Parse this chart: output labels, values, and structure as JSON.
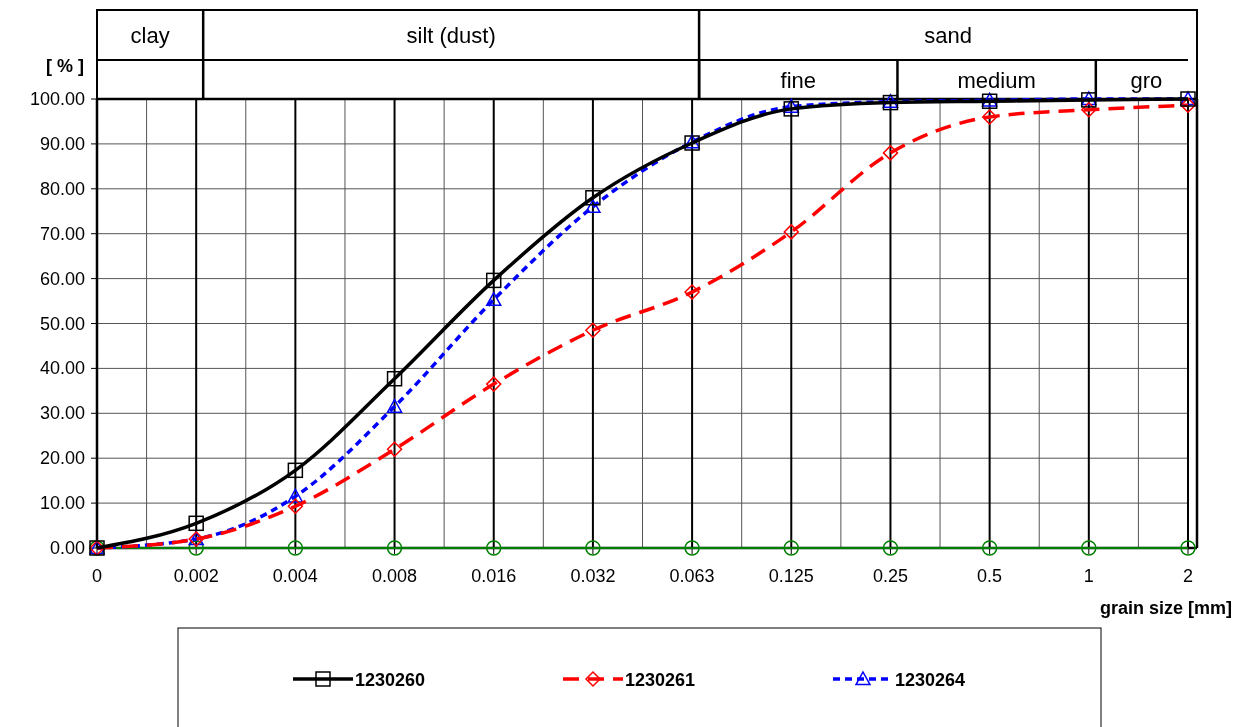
{
  "chart_data": {
    "type": "line",
    "xlabel": "grain size [mm]",
    "ylabel": "[ % ]",
    "categories": [
      "0",
      "0.002",
      "0.004",
      "0.008",
      "0.016",
      "0.032",
      "0.063",
      "0.125",
      "0.25",
      "0.5",
      "1",
      "2"
    ],
    "series": [
      {
        "name": "1230260",
        "color": "#000000",
        "marker": "square",
        "line_style": "solid",
        "values": [
          0,
          5.5,
          17.3,
          37.7,
          59.6,
          78,
          90.2,
          97.8,
          99.2,
          99.5,
          99.8,
          100
        ]
      },
      {
        "name": "1230261",
        "color": "#ff0000",
        "marker": "diamond",
        "line_style": "dashed",
        "values": [
          0,
          2,
          9.3,
          22,
          36.5,
          48.5,
          57,
          70.4,
          88,
          96,
          97.6,
          98.6
        ]
      },
      {
        "name": "1230264",
        "color": "#0000ff",
        "marker": "triangle",
        "line_style": "dashed",
        "values": [
          0,
          2,
          11.5,
          31.5,
          55.3,
          76,
          90.4,
          98.3,
          99.4,
          99.7,
          100,
          100
        ]
      },
      {
        "color": "#008000",
        "marker": "circle",
        "line_style": "solid",
        "values": [
          0,
          0,
          0,
          0,
          0,
          0,
          0,
          0,
          0,
          0,
          0,
          0
        ]
      }
    ],
    "ylim": [
      0,
      100
    ],
    "yticks": [
      {
        "value": 0,
        "label": "0.00"
      },
      {
        "value": 10,
        "label": "10.00"
      },
      {
        "value": 20,
        "label": "20.00"
      },
      {
        "value": 30,
        "label": "30.00"
      },
      {
        "value": 40,
        "label": "40.00"
      },
      {
        "value": 50,
        "label": "50.00"
      },
      {
        "value": 60,
        "label": "60.00"
      },
      {
        "value": 70,
        "label": "70.00"
      },
      {
        "value": 80,
        "label": "80.00"
      },
      {
        "value": 90,
        "label": "90.00"
      },
      {
        "value": 100,
        "label": "100.00"
      }
    ],
    "annotations": [
      "clay",
      "silt (dust)",
      "sand",
      "fine",
      "medium",
      "gro"
    ],
    "grid": true,
    "legend": "bottom"
  }
}
